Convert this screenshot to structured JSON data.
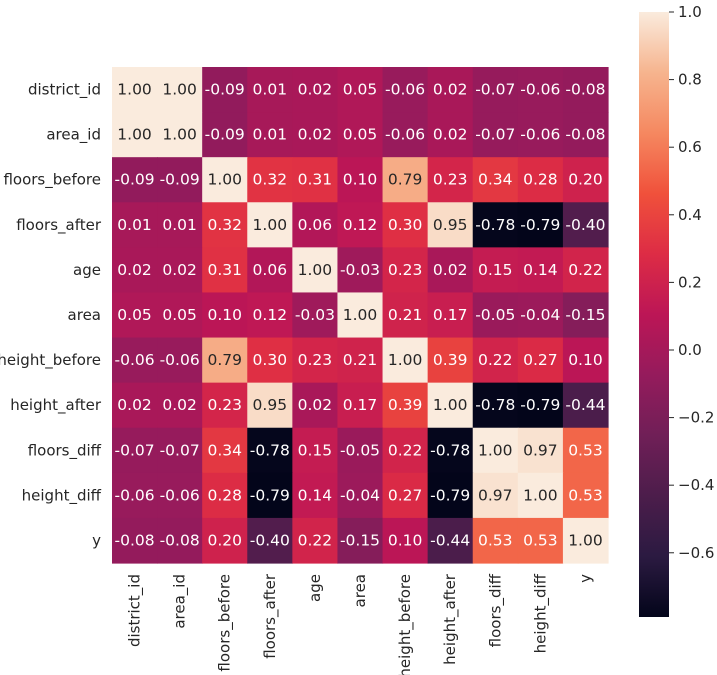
{
  "chart_data": {
    "type": "heatmap",
    "title": "",
    "xlabel": "",
    "ylabel": "",
    "labels": [
      "district_id",
      "area_id",
      "floors_before",
      "floors_after",
      "age",
      "area",
      "height_before",
      "height_after",
      "floors_diff",
      "height_diff",
      "y"
    ],
    "matrix": [
      [
        1.0,
        1.0,
        -0.09,
        0.01,
        0.02,
        0.05,
        -0.06,
        0.02,
        -0.07,
        -0.06,
        -0.08
      ],
      [
        1.0,
        1.0,
        -0.09,
        0.01,
        0.02,
        0.05,
        -0.06,
        0.02,
        -0.07,
        -0.06,
        -0.08
      ],
      [
        -0.09,
        -0.09,
        1.0,
        0.32,
        0.31,
        0.1,
        0.79,
        0.23,
        0.34,
        0.28,
        0.2
      ],
      [
        0.01,
        0.01,
        0.32,
        1.0,
        0.06,
        0.12,
        0.3,
        0.95,
        -0.78,
        -0.79,
        -0.4
      ],
      [
        0.02,
        0.02,
        0.31,
        0.06,
        1.0,
        -0.03,
        0.23,
        0.02,
        0.15,
        0.14,
        0.22
      ],
      [
        0.05,
        0.05,
        0.1,
        0.12,
        -0.03,
        1.0,
        0.21,
        0.17,
        -0.05,
        -0.04,
        -0.15
      ],
      [
        -0.06,
        -0.06,
        0.79,
        0.3,
        0.23,
        0.21,
        1.0,
        0.39,
        0.22,
        0.27,
        0.1
      ],
      [
        0.02,
        0.02,
        0.23,
        0.95,
        0.02,
        0.17,
        0.39,
        1.0,
        -0.78,
        -0.79,
        -0.44
      ],
      [
        -0.07,
        -0.07,
        0.34,
        -0.78,
        0.15,
        -0.05,
        0.22,
        -0.78,
        1.0,
        0.97,
        0.53
      ],
      [
        -0.06,
        -0.06,
        0.28,
        -0.79,
        0.14,
        -0.04,
        0.27,
        -0.79,
        0.97,
        1.0,
        0.53
      ],
      [
        -0.08,
        -0.08,
        0.2,
        -0.4,
        0.22,
        -0.15,
        0.1,
        -0.44,
        0.53,
        0.53,
        1.0
      ]
    ],
    "annotation_format": "0.00",
    "colormap": "rocket",
    "vmin": -0.79,
    "vmax": 1.0,
    "colorbar": {
      "ticks": [
        1.0,
        0.8,
        0.6,
        0.4,
        0.2,
        0.0,
        -0.2,
        -0.4,
        -0.6
      ],
      "tick_labels": [
        "1.0",
        "0.8",
        "0.6",
        "0.4",
        "0.2",
        "0.0",
        "−0.2",
        "−0.4",
        "−0.6"
      ],
      "placement": "right"
    },
    "colormap_stops": [
      {
        "v": 0.0,
        "color": "#03051a"
      },
      {
        "v": 0.1,
        "color": "#2b1a41"
      },
      {
        "v": 0.2,
        "color": "#4c1d4b"
      },
      {
        "v": 0.3,
        "color": "#701f57"
      },
      {
        "v": 0.4,
        "color": "#951b5c"
      },
      {
        "v": 0.5,
        "color": "#bc1656"
      },
      {
        "v": 0.6,
        "color": "#dd2c45"
      },
      {
        "v": 0.7,
        "color": "#f0513b"
      },
      {
        "v": 0.8,
        "color": "#f58860"
      },
      {
        "v": 0.9,
        "color": "#f6b48e"
      },
      {
        "v": 1.0,
        "color": "#faebdd"
      }
    ],
    "text_colors": {
      "light": "#ffffff",
      "dark": "#262626"
    }
  }
}
